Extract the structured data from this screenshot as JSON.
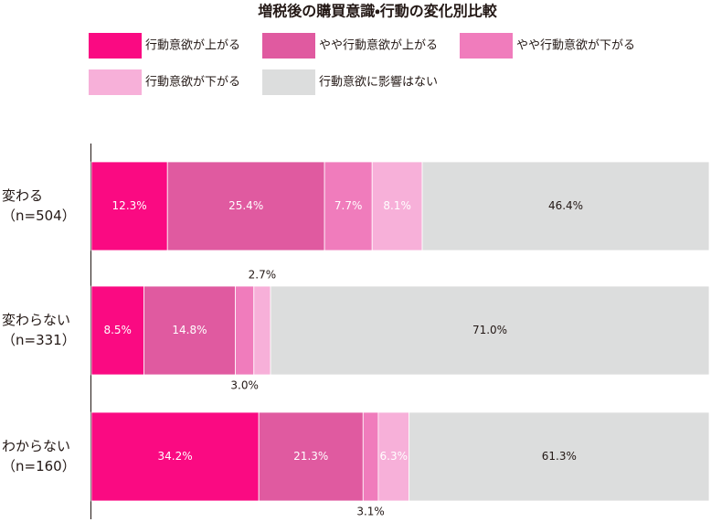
{
  "chart_data": {
    "type": "bar",
    "orientation": "horizontal",
    "stacked": true,
    "title": "増税後の購買意識・行動の変化別比較",
    "categories": [
      "変わる\n（n=504）",
      "変わらない\n（n=331）",
      "わからない\n（n=160）"
    ],
    "series": [
      {
        "name": "行動意欲が上がる",
        "color": "#fa0a82",
        "values": [
          12.3,
          8.5,
          34.2
        ],
        "value_labels": [
          "12.3%",
          "8.5%",
          "34.2%"
        ]
      },
      {
        "name": "やや行動意欲が上がる",
        "color": "#e05aa0",
        "values": [
          25.4,
          14.8,
          21.3
        ],
        "value_labels": [
          "25.4%",
          "14.8%",
          "21.3%"
        ]
      },
      {
        "name": "やや行動意欲が下がる",
        "color": "#f07cbc",
        "values": [
          7.7,
          3.0,
          3.1
        ],
        "value_labels": [
          "7.7%",
          "3.0%",
          "3.1%"
        ]
      },
      {
        "name": "行動意欲が下がる",
        "color": "#f7b0d9",
        "values": [
          8.1,
          2.7,
          6.3
        ],
        "value_labels": [
          "8.1%",
          "2.7%",
          "6.3%"
        ]
      },
      {
        "name": "行動意欲に影響はない",
        "color": "#dcdddd",
        "values": [
          46.4,
          71.0,
          61.3
        ],
        "value_labels": [
          "46.4%",
          "71.0%",
          "61.3%"
        ]
      }
    ]
  }
}
